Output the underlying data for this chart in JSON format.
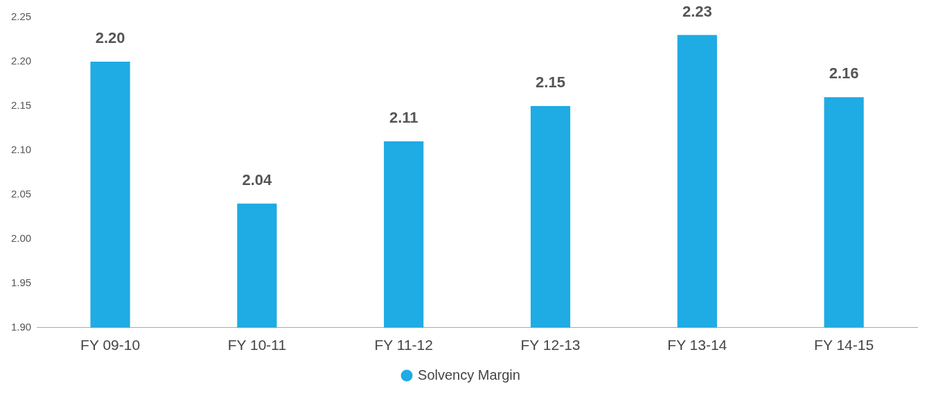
{
  "chart_data": {
    "type": "bar",
    "categories": [
      "FY 09-10",
      "FY 10-11",
      "FY 11-12",
      "FY 12-13",
      "FY 13-14",
      "FY 14-15"
    ],
    "series": [
      {
        "name": "Solvency Margin",
        "color": "#1fabe3",
        "values": [
          2.2,
          2.04,
          2.11,
          2.15,
          2.23,
          2.16
        ]
      }
    ],
    "ylim": [
      1.9,
      2.25
    ],
    "yticks": [
      {
        "value": 1.9,
        "label": "1.90"
      },
      {
        "value": 1.95,
        "label": "1.95"
      },
      {
        "value": 2.0,
        "label": "2.00"
      },
      {
        "value": 2.05,
        "label": "2.05"
      },
      {
        "value": 2.1,
        "label": "2.10"
      },
      {
        "value": 2.15,
        "label": "2.15"
      },
      {
        "value": 2.2,
        "label": "2.20"
      },
      {
        "value": 2.25,
        "label": "2.25"
      }
    ],
    "value_labels": [
      "2.20",
      "2.04",
      "2.11",
      "2.15",
      "2.23",
      "2.16"
    ],
    "grid": false,
    "legend": "bottom"
  }
}
